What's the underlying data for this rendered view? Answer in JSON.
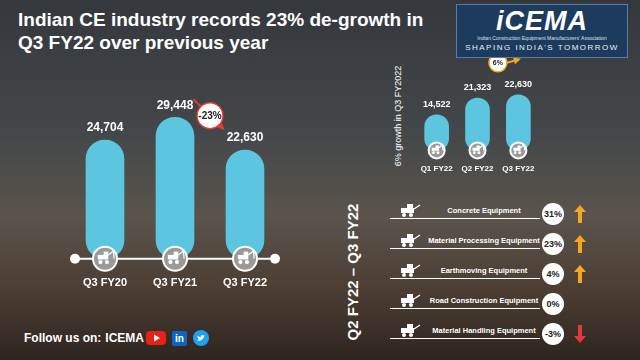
{
  "header": {
    "title": "Indian CE industry records 23% de-growth in Q3 FY22 over previous year",
    "logo": "iCEMA",
    "logo_subtitle": "Indian Construction Equipment Manufacturers' Association",
    "tagline": "SHAPING INDIA'S TOMORROW"
  },
  "chart_data": [
    {
      "type": "bar",
      "categories": [
        "Q3 FY20",
        "Q3 FY21",
        "Q3 FY22"
      ],
      "values": [
        24704,
        29448,
        22630
      ],
      "value_labels": [
        "24,704",
        "29,448",
        "22,630"
      ],
      "color": "#5cc6e0",
      "ylim": [
        0,
        32000
      ],
      "yticks": [
        0,
        32000
      ],
      "grid": false,
      "tick_labels": "x",
      "data_labels": true,
      "annotations": [
        {
          "between": [
            "Q3 FY21",
            "Q3 FY22"
          ],
          "value": -23,
          "label": "-23%"
        }
      ]
    },
    {
      "type": "bar",
      "title": "6% growth in Q3 FY2022",
      "categories": [
        "Q1 FY22",
        "Q2 FY22",
        "Q3 FY22"
      ],
      "values": [
        14522,
        21323,
        22630
      ],
      "value_labels": [
        "14,522",
        "21,323",
        "22,630"
      ],
      "color": "#5cc6e0",
      "ylim": [
        0,
        25000
      ],
      "yticks": [
        0,
        25000
      ],
      "grid": false,
      "tick_labels": "x",
      "data_labels": true,
      "annotations": [
        {
          "between": [
            "Q2 FY22",
            "Q3 FY22"
          ],
          "value": 6,
          "label": "6%"
        }
      ]
    }
  ],
  "segment_growth": {
    "title": "Q2 FY22 – Q3 FY22",
    "rows": [
      {
        "label": "Concrete Equipment",
        "value": 31,
        "value_label": "31%"
      },
      {
        "label": "Material Processing Equipment",
        "value": 23,
        "value_label": "23%"
      },
      {
        "label": "Earthmoving Equipment",
        "value": 4,
        "value_label": "4%"
      },
      {
        "label": "Road Construction Equipment",
        "value": 0,
        "value_label": "0%"
      },
      {
        "label": "Material Handling Equipment",
        "value": -3,
        "value_label": "-3%"
      }
    ]
  },
  "footer": {
    "text": "Follow us on:",
    "handle": "ICEMA",
    "linkedin_icon": "in"
  }
}
